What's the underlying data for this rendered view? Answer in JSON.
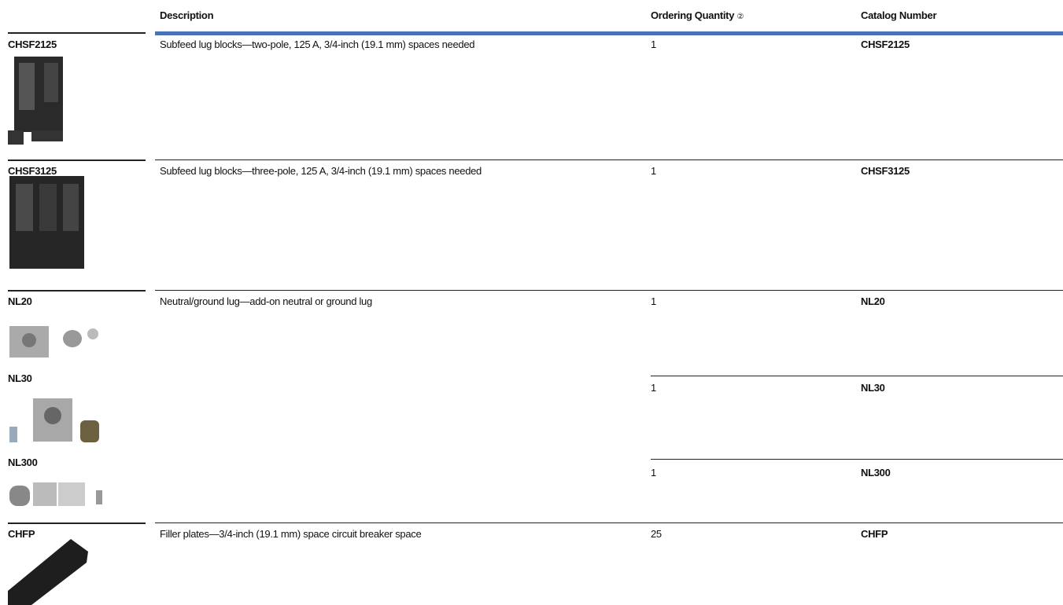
{
  "header": {
    "description": "Description",
    "ordering_quantity": "Ordering Quantity",
    "footnote_marker": "②",
    "catalog_number": "Catalog Number"
  },
  "rows": [
    {
      "description": "Subfeed lug blocks—two-pole, 125 A, 3/4-inch (19.1 mm) spaces needed",
      "items": [
        {
          "product": "CHSF2125",
          "quantity": 1,
          "catalog_number": "CHSF2125"
        }
      ]
    },
    {
      "description": "Subfeed lug blocks—three-pole, 125 A, 3/4-inch (19.1 mm) spaces needed",
      "items": [
        {
          "product": "CHSF3125",
          "quantity": 1,
          "catalog_number": "CHSF3125"
        }
      ]
    },
    {
      "description": "Neutral/ground lug—add-on neutral or ground lug",
      "items": [
        {
          "product": "NL20",
          "quantity": 1,
          "catalog_number": "NL20"
        },
        {
          "product": "NL30",
          "quantity": 1,
          "catalog_number": "NL30"
        },
        {
          "product": "NL300",
          "quantity": 1,
          "catalog_number": "NL300"
        }
      ]
    },
    {
      "description": "Filler plates—3/4-inch (19.1 mm) space circuit breaker space",
      "items": [
        {
          "product": "CHFP",
          "quantity": 25,
          "catalog_number": "CHFP"
        }
      ]
    }
  ]
}
